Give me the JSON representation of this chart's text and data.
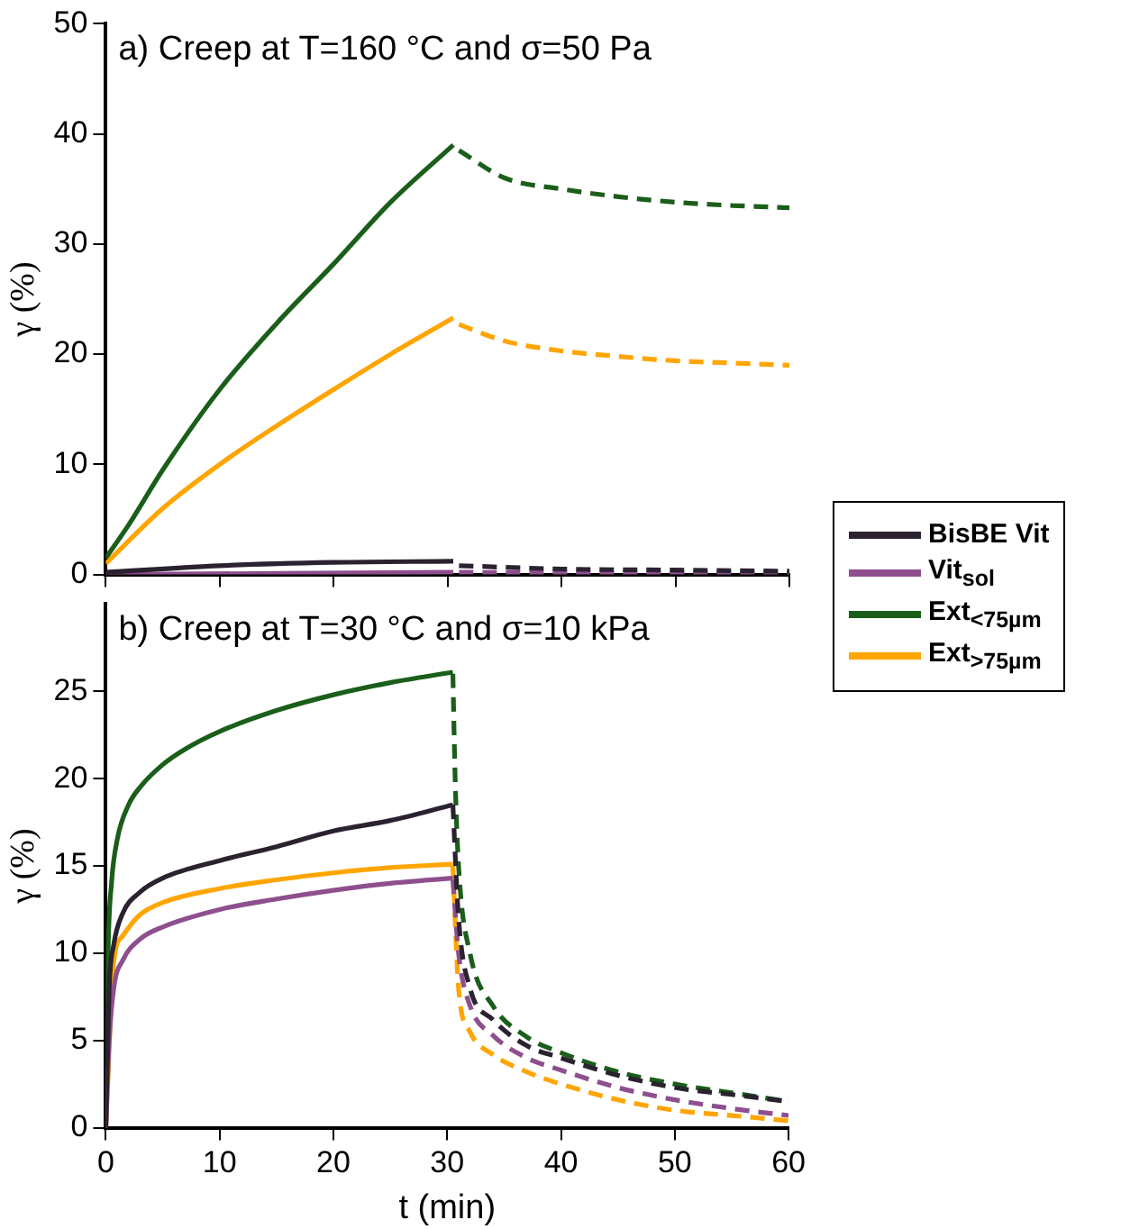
{
  "chart_data": [
    {
      "type": "line",
      "title": "a) Creep at T=160 °C and σ=50 Pa",
      "ylabel": "γ (%)",
      "xlim": [
        0,
        60
      ],
      "xticks": [
        0,
        10,
        20,
        30,
        40,
        50,
        60
      ],
      "ylim": [
        0,
        50
      ],
      "yticks": [
        0,
        10,
        20,
        30,
        40,
        50
      ],
      "tick_labels": "y",
      "grid": false,
      "marker": "none",
      "legend": "right",
      "series": [
        {
          "name": "BisBE Vit",
          "color": "#2b2230",
          "line_style": "solid",
          "x": [
            0,
            10,
            20,
            30.5
          ],
          "values": [
            0.2,
            0.8,
            1.1,
            1.2
          ]
        },
        {
          "name": "Vit$_{sol}$",
          "color": "#8e4f8e",
          "line_style": "solid",
          "x": [
            0,
            30.5
          ],
          "values": [
            0,
            0.2
          ]
        },
        {
          "name": "Ext$_{<75µm}$",
          "color": "#1a5e1a",
          "line_style": "solid",
          "x": [
            0,
            2,
            5,
            10,
            15,
            20,
            25,
            30.5
          ],
          "values": [
            1.5,
            4.5,
            9.5,
            16.8,
            22.8,
            28.2,
            33.8,
            39
          ]
        },
        {
          "name": "Ext$_{>75µm}$",
          "color": "#ffa500",
          "line_style": "solid",
          "x": [
            0,
            5,
            10,
            15,
            20,
            25,
            30.5
          ],
          "values": [
            1,
            6,
            10,
            13.5,
            16.8,
            20,
            23.3
          ]
        },
        {
          "color": "#2b2230",
          "line_style": "dashed",
          "x": [
            31,
            40,
            50,
            60
          ],
          "values": [
            0.8,
            0.5,
            0.4,
            0.3
          ]
        },
        {
          "color": "#8e4f8e",
          "line_style": "dashed",
          "x": [
            31,
            60
          ],
          "values": [
            0.2,
            0.1
          ]
        },
        {
          "color": "#1a5e1a",
          "line_style": "dashed",
          "x": [
            31,
            35,
            40,
            45,
            50,
            55,
            60
          ],
          "values": [
            38.5,
            36,
            35,
            34.3,
            33.8,
            33.5,
            33.3
          ]
        },
        {
          "color": "#ffa500",
          "line_style": "dashed",
          "x": [
            31,
            35,
            40,
            45,
            50,
            55,
            60
          ],
          "values": [
            22.7,
            21.2,
            20.3,
            19.8,
            19.4,
            19.2,
            19
          ]
        }
      ]
    },
    {
      "type": "line",
      "title": "b) Creep at T=30 °C and σ=10 kPa",
      "xlabel": "t (min)",
      "ylabel": "γ (%)",
      "xlim": [
        0,
        60
      ],
      "xticks": [
        0,
        10,
        20,
        30,
        40,
        50,
        60
      ],
      "ylim": [
        0,
        30
      ],
      "yticks": [
        0,
        5,
        10,
        15,
        20,
        25
      ],
      "grid": false,
      "marker": "none",
      "series": [
        {
          "color": "#2b2230",
          "line_style": "solid",
          "x": [
            0,
            0.3,
            0.7,
            1.5,
            3,
            5,
            10,
            15,
            20,
            25,
            30.5
          ],
          "values": [
            0,
            8,
            10.5,
            12.3,
            13.5,
            14.3,
            15.3,
            16.1,
            17,
            17.6,
            18.5
          ]
        },
        {
          "color": "#8e4f8e",
          "line_style": "solid",
          "x": [
            0,
            0.3,
            0.7,
            1.5,
            3,
            5,
            10,
            15,
            20,
            25,
            30.5
          ],
          "values": [
            0,
            5,
            8,
            9.6,
            10.8,
            11.5,
            12.5,
            13.1,
            13.6,
            14,
            14.3
          ]
        },
        {
          "color": "#1a5e1a",
          "line_style": "solid",
          "x": [
            0,
            0.2,
            0.5,
            1,
            2,
            3,
            5,
            7,
            10,
            15,
            20,
            25,
            30.5
          ],
          "values": [
            0,
            10,
            14,
            16.5,
            18.5,
            19.5,
            20.8,
            21.7,
            22.7,
            23.9,
            24.8,
            25.5,
            26.1
          ]
        },
        {
          "color": "#ffa500",
          "line_style": "solid",
          "x": [
            0,
            0.7,
            1.5,
            3,
            5,
            10,
            15,
            20,
            25,
            30.5
          ],
          "values": [
            0,
            9.5,
            11,
            12.2,
            12.9,
            13.7,
            14.2,
            14.6,
            14.9,
            15.1
          ]
        },
        {
          "color": "#2b2230",
          "line_style": "dashed",
          "x": [
            30.5,
            31,
            32,
            34,
            37,
            40,
            45,
            50,
            55,
            60
          ],
          "values": [
            18.5,
            12,
            8,
            6.2,
            4.7,
            4,
            3,
            2.3,
            1.9,
            1.5
          ]
        },
        {
          "color": "#8e4f8e",
          "line_style": "dashed",
          "x": [
            30.5,
            31,
            32,
            34,
            37,
            40,
            45,
            50,
            55,
            60
          ],
          "values": [
            14.2,
            10,
            7,
            5.3,
            4,
            3.3,
            2.3,
            1.6,
            1.1,
            0.7
          ]
        },
        {
          "color": "#1a5e1a",
          "line_style": "dashed",
          "x": [
            30.5,
            30.7,
            31,
            32,
            34,
            37,
            40,
            45,
            50,
            55,
            60
          ],
          "values": [
            26,
            20,
            15,
            10,
            7,
            5.2,
            4.3,
            3.2,
            2.5,
            2,
            1.5
          ]
        },
        {
          "color": "#ffa500",
          "line_style": "dashed",
          "x": [
            30.5,
            31,
            32,
            34,
            37,
            40,
            45,
            50,
            55,
            60
          ],
          "values": [
            15,
            8,
            5.5,
            4.2,
            3.2,
            2.5,
            1.6,
            1,
            0.7,
            0.4
          ]
        }
      ]
    }
  ]
}
